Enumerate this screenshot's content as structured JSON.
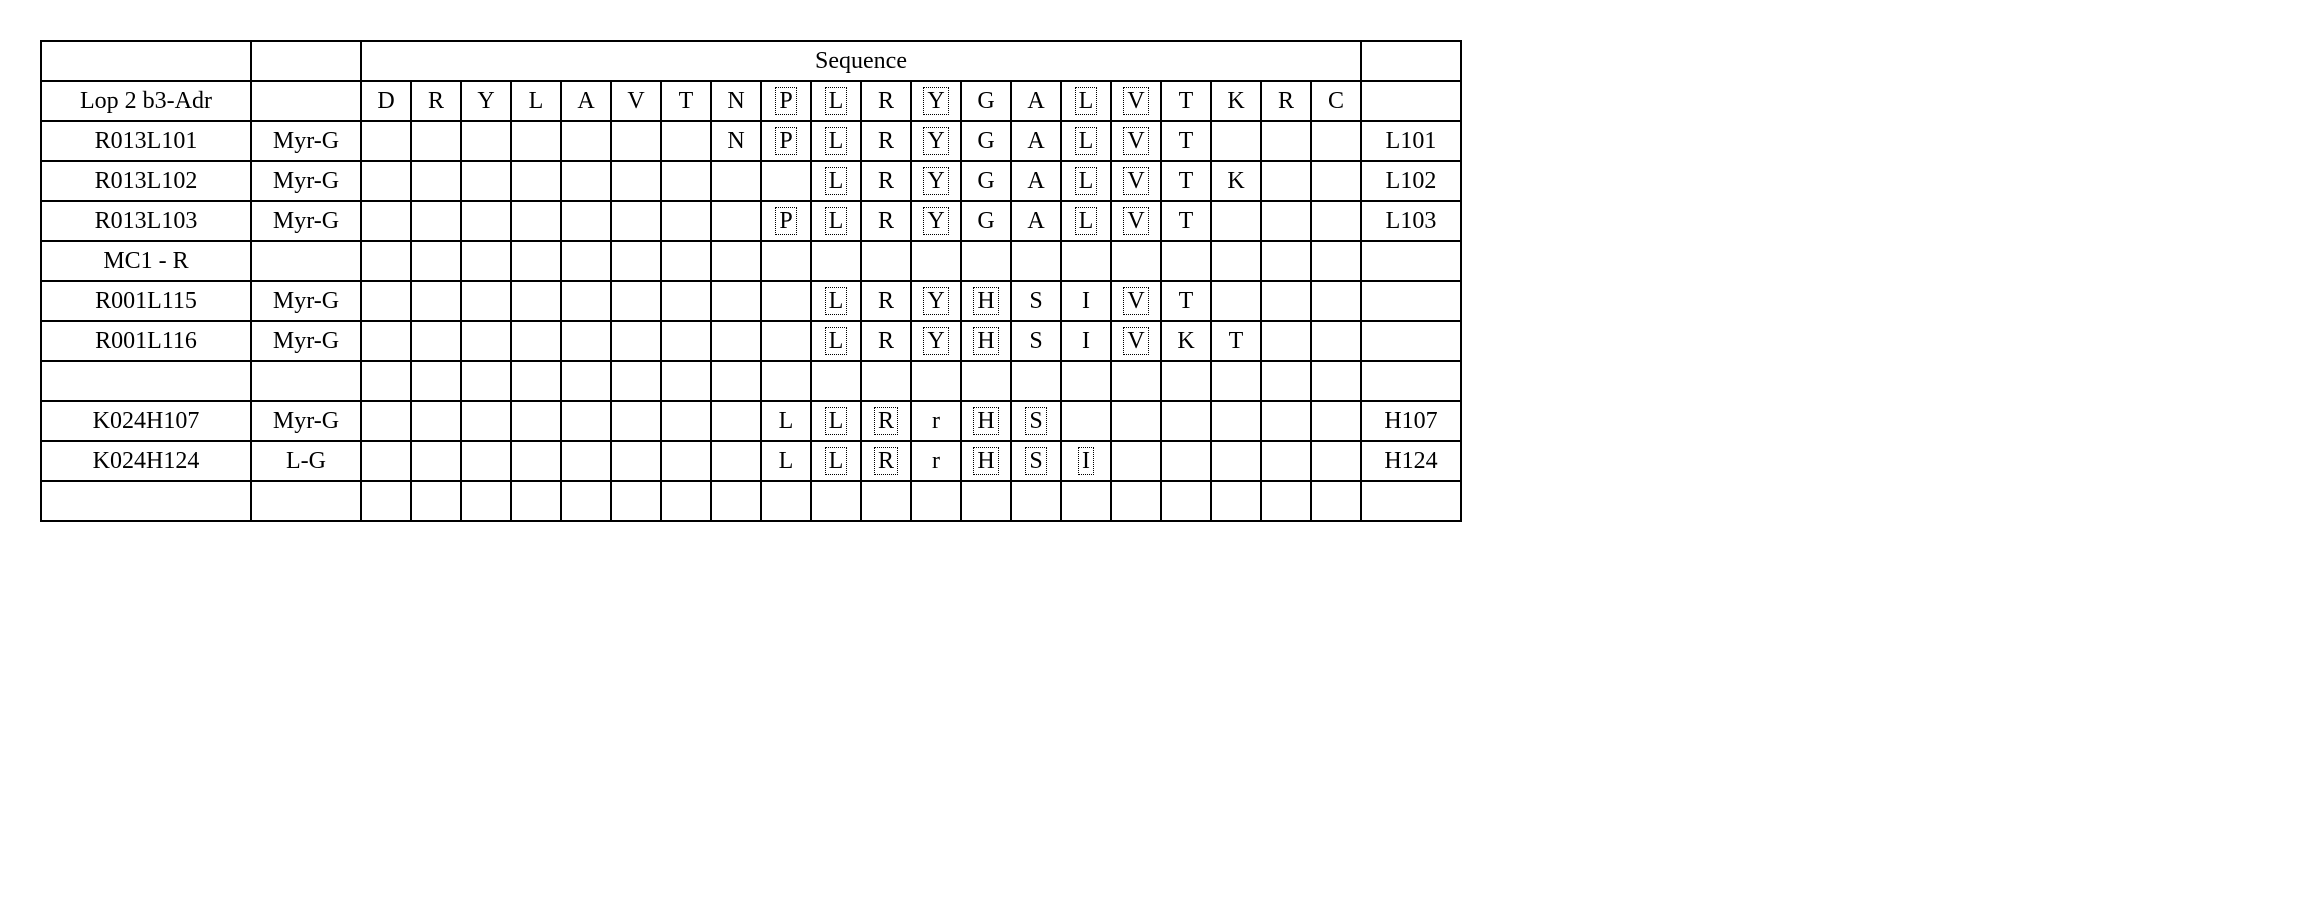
{
  "header": {
    "sequence_title": "Sequence"
  },
  "rows": [
    {
      "label": "Lop 2 b3-Adr",
      "modifier": "",
      "seq": [
        "D",
        "R",
        "Y",
        "L",
        "A",
        "V",
        "T",
        "N",
        "P",
        "L",
        "R",
        "Y",
        "G",
        "A",
        "L",
        "V",
        "T",
        "K",
        "R",
        "C"
      ],
      "dashed": [
        false,
        false,
        false,
        false,
        false,
        false,
        false,
        false,
        true,
        true,
        false,
        true,
        false,
        false,
        true,
        true,
        false,
        false,
        false,
        false
      ],
      "suffix": ""
    },
    {
      "label": "R013L101",
      "modifier": "Myr-G",
      "seq": [
        "",
        "",
        "",
        "",
        "",
        "",
        "",
        "N",
        "P",
        "L",
        "R",
        "Y",
        "G",
        "A",
        "L",
        "V",
        "T",
        "",
        "",
        ""
      ],
      "dashed": [
        false,
        false,
        false,
        false,
        false,
        false,
        false,
        false,
        true,
        true,
        false,
        true,
        false,
        false,
        true,
        true,
        false,
        false,
        false,
        false
      ],
      "suffix": "L101"
    },
    {
      "label": "R013L102",
      "modifier": "Myr-G",
      "seq": [
        "",
        "",
        "",
        "",
        "",
        "",
        "",
        "",
        "",
        "L",
        "R",
        "Y",
        "G",
        "A",
        "L",
        "V",
        "T",
        "K",
        "",
        ""
      ],
      "dashed": [
        false,
        false,
        false,
        false,
        false,
        false,
        false,
        false,
        false,
        true,
        false,
        true,
        false,
        false,
        true,
        true,
        false,
        false,
        false,
        false
      ],
      "suffix": "L102"
    },
    {
      "label": "R013L103",
      "modifier": "Myr-G",
      "seq": [
        "",
        "",
        "",
        "",
        "",
        "",
        "",
        "",
        "P",
        "L",
        "R",
        "Y",
        "G",
        "A",
        "L",
        "V",
        "T",
        "",
        "",
        ""
      ],
      "dashed": [
        false,
        false,
        false,
        false,
        false,
        false,
        false,
        false,
        true,
        true,
        false,
        true,
        false,
        false,
        true,
        true,
        false,
        false,
        false,
        false
      ],
      "suffix": "L103"
    },
    {
      "label": "MC1 - R",
      "modifier": "",
      "seq": [
        "",
        "",
        "",
        "",
        "",
        "",
        "",
        "",
        "",
        "",
        "",
        "",
        "",
        "",
        "",
        "",
        "",
        "",
        "",
        ""
      ],
      "dashed": [
        false,
        false,
        false,
        false,
        false,
        false,
        false,
        false,
        false,
        false,
        false,
        false,
        false,
        false,
        false,
        false,
        false,
        false,
        false,
        false
      ],
      "suffix": ""
    },
    {
      "label": "R001L115",
      "modifier": "Myr-G",
      "seq": [
        "",
        "",
        "",
        "",
        "",
        "",
        "",
        "",
        "",
        "L",
        "R",
        "Y",
        "H",
        "S",
        "I",
        "V",
        "T",
        "",
        "",
        ""
      ],
      "dashed": [
        false,
        false,
        false,
        false,
        false,
        false,
        false,
        false,
        false,
        true,
        false,
        true,
        true,
        false,
        false,
        true,
        false,
        false,
        false,
        false
      ],
      "suffix": ""
    },
    {
      "label": "R001L116",
      "modifier": "Myr-G",
      "seq": [
        "",
        "",
        "",
        "",
        "",
        "",
        "",
        "",
        "",
        "L",
        "R",
        "Y",
        "H",
        "S",
        "I",
        "V",
        "K",
        "T",
        "",
        ""
      ],
      "dashed": [
        false,
        false,
        false,
        false,
        false,
        false,
        false,
        false,
        false,
        true,
        false,
        true,
        true,
        false,
        false,
        true,
        false,
        false,
        false,
        false
      ],
      "suffix": ""
    },
    {
      "label": "",
      "modifier": "",
      "seq": [
        "",
        "",
        "",
        "",
        "",
        "",
        "",
        "",
        "",
        "",
        "",
        "",
        "",
        "",
        "",
        "",
        "",
        "",
        "",
        ""
      ],
      "dashed": [
        false,
        false,
        false,
        false,
        false,
        false,
        false,
        false,
        false,
        false,
        false,
        false,
        false,
        false,
        false,
        false,
        false,
        false,
        false,
        false
      ],
      "suffix": ""
    },
    {
      "label": "K024H107",
      "modifier": "Myr-G",
      "seq": [
        "",
        "",
        "",
        "",
        "",
        "",
        "",
        "",
        "L",
        "L",
        "R",
        "r",
        "H",
        "S",
        "",
        "",
        "",
        "",
        "",
        ""
      ],
      "dashed": [
        false,
        false,
        false,
        false,
        false,
        false,
        false,
        false,
        false,
        true,
        true,
        false,
        true,
        true,
        false,
        false,
        false,
        false,
        false,
        false
      ],
      "suffix": "H107"
    },
    {
      "label": "K024H124",
      "modifier": "L-G",
      "seq": [
        "",
        "",
        "",
        "",
        "",
        "",
        "",
        "",
        "L",
        "L",
        "R",
        "r",
        "H",
        "S",
        "I",
        "",
        "",
        "",
        "",
        ""
      ],
      "dashed": [
        false,
        false,
        false,
        false,
        false,
        false,
        false,
        false,
        false,
        true,
        true,
        false,
        true,
        true,
        true,
        false,
        false,
        false,
        false,
        false
      ],
      "suffix": "H124"
    },
    {
      "label": "",
      "modifier": "",
      "seq": [
        "",
        "",
        "",
        "",
        "",
        "",
        "",
        "",
        "",
        "",
        "",
        "",
        "",
        "",
        "",
        "",
        "",
        "",
        "",
        ""
      ],
      "dashed": [
        false,
        false,
        false,
        false,
        false,
        false,
        false,
        false,
        false,
        false,
        false,
        false,
        false,
        false,
        false,
        false,
        false,
        false,
        false,
        false
      ],
      "suffix": ""
    }
  ],
  "style": {
    "background_color": "#ffffff",
    "border_color": "#000000",
    "font_family": "Times New Roman",
    "cell_fontsize": 24,
    "num_seq_cols": 20
  }
}
